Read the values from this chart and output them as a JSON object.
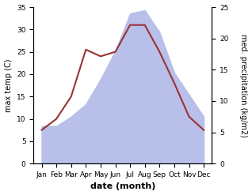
{
  "months": [
    "Jan",
    "Feb",
    "Mar",
    "Apr",
    "May",
    "Jun",
    "Jul",
    "Aug",
    "Sep",
    "Oct",
    "Nov",
    "Dec"
  ],
  "temperature": [
    7.5,
    10.0,
    15.0,
    25.5,
    24.0,
    25.0,
    31.0,
    31.0,
    25.0,
    18.0,
    10.5,
    7.5
  ],
  "precipitation": [
    6.0,
    6.0,
    7.5,
    9.5,
    13.5,
    18.0,
    24.0,
    24.5,
    21.0,
    14.5,
    11.0,
    7.5
  ],
  "temp_color": "#993333",
  "precip_fill_color": "#b8bfe8",
  "temp_ylim": [
    0,
    35
  ],
  "precip_ylim": [
    0,
    25
  ],
  "temp_yticks": [
    0,
    5,
    10,
    15,
    20,
    25,
    30,
    35
  ],
  "precip_yticks": [
    0,
    5,
    10,
    15,
    20,
    25
  ],
  "xlabel": "date (month)",
  "ylabel_left": "max temp (C)",
  "ylabel_right": "med. precipitation (kg/m2)",
  "axis_fontsize": 7,
  "tick_fontsize": 6.5,
  "xlabel_fontsize": 8,
  "figsize": [
    3.18,
    2.47
  ],
  "dpi": 100
}
